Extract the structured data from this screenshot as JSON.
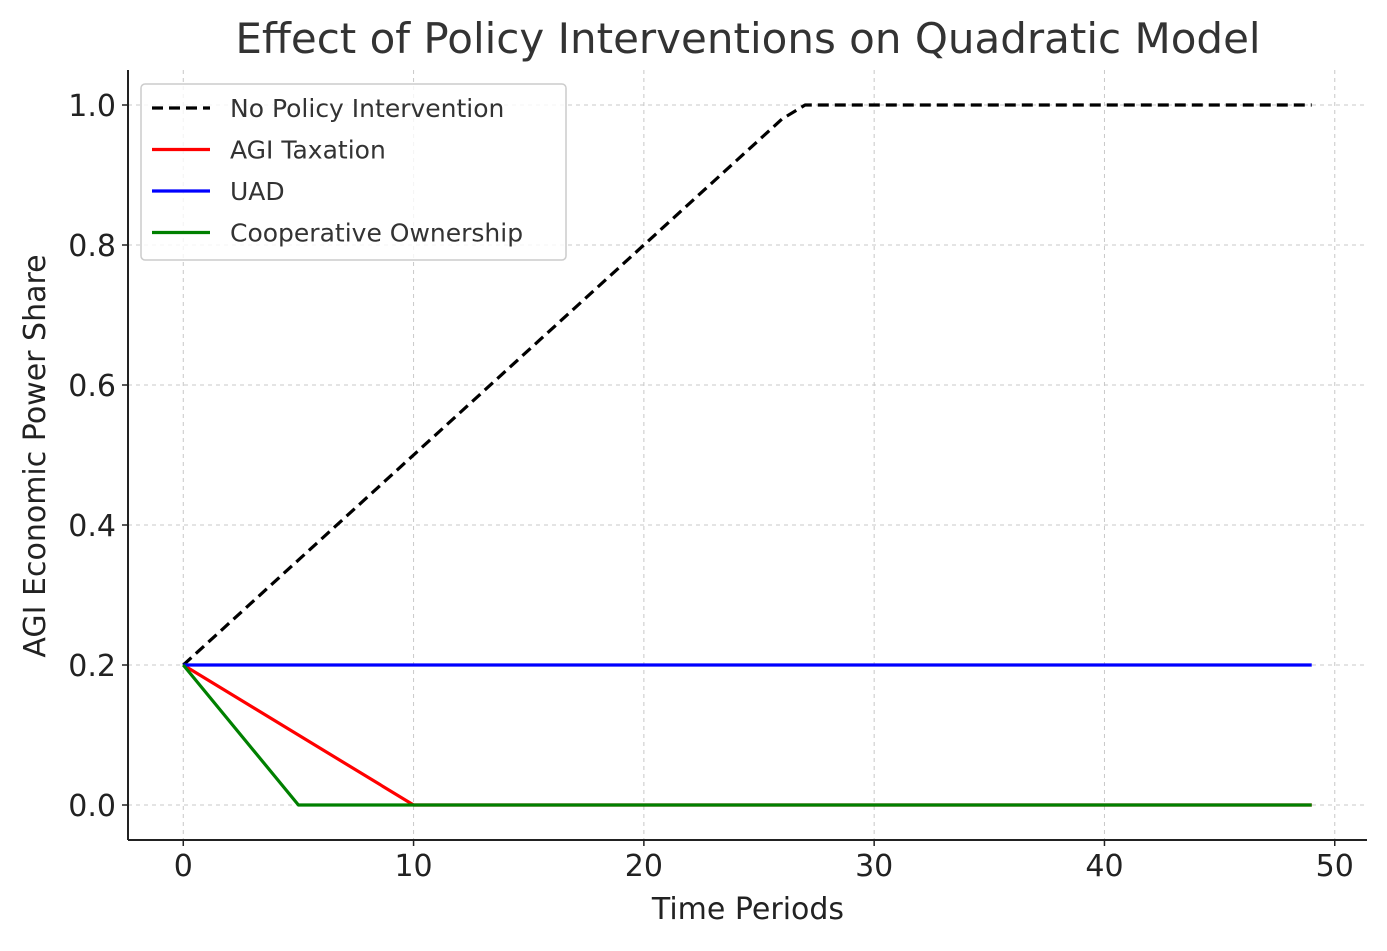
{
  "chart_data": {
    "type": "line",
    "title": "Effect of Policy Interventions on Quadratic Model",
    "xlabel": "Time Periods",
    "ylabel": "AGI Economic Power Share",
    "xlim": [
      -2.4,
      51.4
    ],
    "ylim": [
      -0.05,
      1.05
    ],
    "xticks": [
      0,
      10,
      20,
      30,
      40,
      50
    ],
    "xtick_labels": [
      "0",
      "10",
      "20",
      "30",
      "40",
      "50"
    ],
    "yticks": [
      0.0,
      0.2,
      0.4,
      0.6,
      0.8,
      1.0
    ],
    "ytick_labels": [
      "0.0",
      "0.2",
      "0.4",
      "0.6",
      "0.8",
      "1.0"
    ],
    "grid": true,
    "legend_position": "upper-left",
    "series": [
      {
        "name": "No Policy Intervention",
        "color": "#000000",
        "dashed": true,
        "x": [
          0,
          26,
          27,
          49
        ],
        "y": [
          0.2,
          0.98,
          1.0,
          1.0
        ]
      },
      {
        "name": "AGI Taxation",
        "color": "#ff0000",
        "dashed": false,
        "x": [
          0,
          10,
          49
        ],
        "y": [
          0.2,
          0.0,
          0.0
        ]
      },
      {
        "name": "UAD",
        "color": "#0000ff",
        "dashed": false,
        "x": [
          0,
          49
        ],
        "y": [
          0.2,
          0.2
        ]
      },
      {
        "name": "Cooperative Ownership",
        "color": "#008000",
        "dashed": false,
        "x": [
          0,
          5,
          49
        ],
        "y": [
          0.2,
          0.0,
          0.0
        ]
      }
    ]
  }
}
